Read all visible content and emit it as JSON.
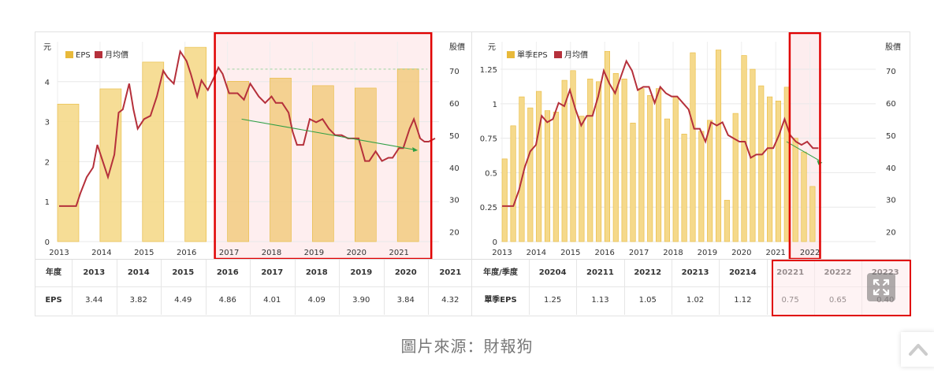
{
  "caption": "圖片來源：財報狗",
  "left": {
    "y_left_title": "元",
    "y_right_title": "股價",
    "legend_bar": "EPS",
    "legend_line": "月均價",
    "table_row1_label": "年度",
    "table_row2_label": "EPS",
    "table_years": [
      "2013",
      "2014",
      "2015",
      "2016",
      "2017",
      "2018",
      "2019",
      "2020",
      "2021"
    ],
    "table_values": [
      "3.44",
      "3.82",
      "4.49",
      "4.86",
      "4.01",
      "4.09",
      "3.90",
      "3.84",
      "4.32"
    ]
  },
  "right": {
    "y_left_title": "元",
    "y_right_title": "股價",
    "legend_bar": "單季EPS",
    "legend_line": "月均價",
    "table_row1_label": "年度/季度",
    "table_row2_label": "單季EPS",
    "table_quarters": [
      "20204",
      "20211",
      "20212",
      "20213",
      "20214",
      "20221",
      "20222",
      "20223"
    ],
    "table_values": [
      "1.25",
      "1.13",
      "1.05",
      "1.02",
      "1.12",
      "0.75",
      "0.65",
      "0.40"
    ]
  },
  "colors": {
    "bar_fill": "#f5d98b",
    "bar_stroke": "#e8b93a",
    "line": "#b5303b",
    "highlight_box": "#e00000",
    "highlight_fill": "#fde8ea",
    "trend_arrow": "#2e9e44"
  },
  "chart_data": [
    {
      "type": "bar+line",
      "x_ticks": [
        "2013",
        "2014",
        "2015",
        "2016",
        "2017",
        "2018",
        "2019",
        "2020",
        "2021"
      ],
      "ylabel": "元",
      "ylim": [
        0,
        5
      ],
      "y_ticks": [
        0,
        1,
        2,
        3,
        4
      ],
      "y2label": "股價",
      "y2lim": [
        17,
        79
      ],
      "y2_ticks": [
        20,
        30,
        40,
        50,
        60,
        70
      ],
      "series": [
        {
          "name": "EPS",
          "type": "bar",
          "x": [
            2013,
            2014,
            2015,
            2016,
            2017,
            2018,
            2019,
            2020,
            2021
          ],
          "values": [
            3.44,
            3.82,
            4.49,
            4.86,
            4.01,
            4.09,
            3.9,
            3.84,
            4.32
          ]
        },
        {
          "name": "月均價",
          "type": "line",
          "y_axis": "right",
          "x": [
            2013.0,
            2013.25,
            2013.4,
            2013.5,
            2013.65,
            2013.8,
            2013.9,
            2014.0,
            2014.15,
            2014.3,
            2014.4,
            2014.5,
            2014.65,
            2014.75,
            2014.85,
            2015.0,
            2015.15,
            2015.3,
            2015.45,
            2015.55,
            2015.7,
            2015.85,
            2016.0,
            2016.1,
            2016.25,
            2016.35,
            2016.5,
            2016.65,
            2016.75,
            2016.85,
            2017.0,
            2017.2,
            2017.35,
            2017.5,
            2017.7,
            2017.85,
            2018.0,
            2018.1,
            2018.25,
            2018.4,
            2018.5,
            2018.6,
            2018.75,
            2018.9,
            2019.05,
            2019.2,
            2019.35,
            2019.5,
            2019.65,
            2019.8,
            2019.95,
            2020.05,
            2020.2,
            2020.3,
            2020.45,
            2020.6,
            2020.75,
            2020.85,
            2021.0,
            2021.1,
            2021.25,
            2021.35,
            2021.5,
            2021.6,
            2021.7,
            2021.85
          ],
          "values": [
            28,
            28,
            28,
            32,
            37,
            40,
            47,
            43,
            37,
            44,
            57,
            58,
            66,
            58,
            52,
            55,
            56,
            62,
            70,
            68,
            66,
            76,
            73,
            69,
            62,
            67,
            64,
            68,
            71,
            69,
            63,
            63,
            61,
            66,
            62,
            60,
            62,
            60,
            60,
            57,
            51,
            47,
            47,
            55,
            54,
            55,
            52,
            50,
            50,
            49,
            49,
            49,
            42,
            42,
            45,
            42,
            43,
            43,
            46,
            46,
            52,
            55,
            49,
            48,
            48,
            49
          ]
        },
        {
          "name": "",
          "type": "line",
          "values": [
            70.5,
            70.5
          ]
        }
      ],
      "highlight_range": [
        "2017",
        "2021"
      ]
    },
    {
      "type": "bar+line",
      "x_ticks": [
        "2013",
        "2014",
        "2015",
        "2016",
        "2017",
        "2018",
        "2019",
        "2020",
        "2021",
        "2022"
      ],
      "ylabel": "元",
      "ylim": [
        0,
        1.45
      ],
      "y_ticks": [
        0,
        0.25,
        0.5,
        0.75,
        1,
        1.25
      ],
      "y2label": "股價",
      "y2lim": [
        17,
        79
      ],
      "y2_ticks": [
        20,
        30,
        40,
        50,
        60,
        70
      ],
      "series": [
        {
          "name": "單季EPS",
          "type": "bar",
          "values": [
            0.6,
            0.84,
            1.05,
            0.97,
            1.09,
            0.95,
            0.94,
            1.17,
            1.24,
            0.91,
            1.18,
            1.16,
            1.38,
            1.22,
            1.18,
            0.86,
            1.11,
            1.06,
            1.11,
            0.89,
            1.05,
            0.78,
            1.37,
            0.8,
            0.88,
            1.39,
            0.3,
            0.93,
            1.35,
            1.25,
            1.13,
            1.05,
            1.02,
            1.12,
            0.75,
            0.65,
            0.4
          ]
        },
        {
          "name": "月均價",
          "type": "line",
          "y_axis": "right",
          "values": [
            28,
            28,
            28,
            33,
            40,
            45,
            47,
            56,
            54,
            55,
            60,
            59,
            64,
            58,
            53,
            56,
            56,
            62,
            70,
            66,
            63,
            68,
            73,
            70,
            64,
            65,
            65,
            60,
            65,
            63,
            62,
            62,
            60,
            58,
            52,
            52,
            48,
            54,
            53,
            54,
            50,
            49,
            48,
            48,
            43,
            44,
            44,
            46,
            46,
            50,
            55,
            50,
            48,
            47,
            48,
            46,
            46
          ]
        }
      ],
      "highlight_range": [
        "20221",
        "20223"
      ]
    }
  ]
}
